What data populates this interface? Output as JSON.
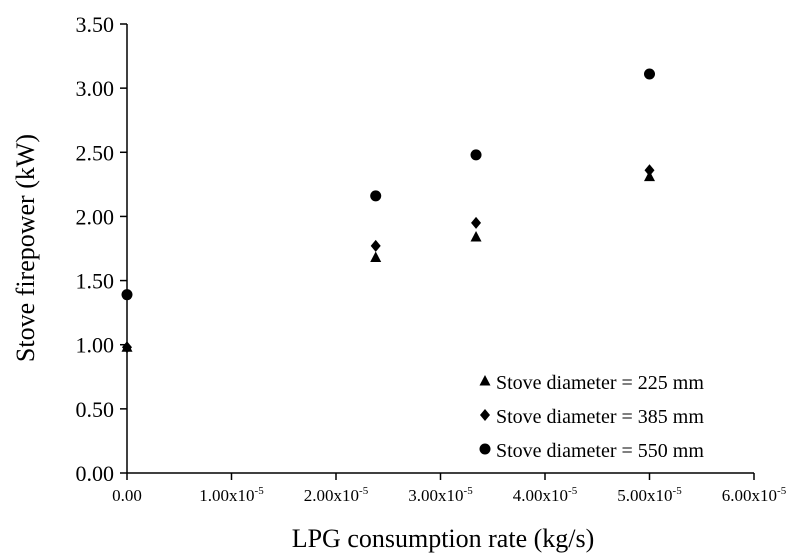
{
  "chart_data": {
    "type": "scatter",
    "title": "",
    "xlabel": "LPG consumption rate (kg/s)",
    "ylabel": "Stove firepower (kW)",
    "xlim": [
      0,
      6e-05
    ],
    "ylim": [
      0,
      3.5
    ],
    "x_ticks": [
      {
        "value": 0,
        "mantissa": "0.00",
        "exp": ""
      },
      {
        "value": 1e-05,
        "mantissa": "1.00x10",
        "exp": "-5"
      },
      {
        "value": 2e-05,
        "mantissa": "2.00x10",
        "exp": "-5"
      },
      {
        "value": 3e-05,
        "mantissa": "3.00x10",
        "exp": "-5"
      },
      {
        "value": 4e-05,
        "mantissa": "4.00x10",
        "exp": "-5"
      },
      {
        "value": 5e-05,
        "mantissa": "5.00x10",
        "exp": "-5"
      },
      {
        "value": 6e-05,
        "mantissa": "6.00x10",
        "exp": "-5"
      }
    ],
    "y_ticks": [
      {
        "value": 0,
        "label": "0.00"
      },
      {
        "value": 0.5,
        "label": "0.50"
      },
      {
        "value": 1.0,
        "label": "1.00"
      },
      {
        "value": 1.5,
        "label": "1.50"
      },
      {
        "value": 2.0,
        "label": "2.00"
      },
      {
        "value": 2.5,
        "label": "2.50"
      },
      {
        "value": 3.0,
        "label": "3.00"
      },
      {
        "value": 3.5,
        "label": "3.50"
      }
    ],
    "grid": false,
    "legend_position": "bottom-right",
    "series": [
      {
        "name": "Stove diameter = 225 mm",
        "marker": "triangle",
        "color": "#000000",
        "points": [
          [
            0,
            0.98
          ],
          [
            2.38e-05,
            1.68
          ],
          [
            3.34e-05,
            1.84
          ],
          [
            5e-05,
            2.31
          ]
        ]
      },
      {
        "name": "Stove diameter = 385 mm",
        "marker": "diamond",
        "color": "#000000",
        "points": [
          [
            0,
            0.98
          ],
          [
            2.38e-05,
            1.77
          ],
          [
            3.34e-05,
            1.95
          ],
          [
            5e-05,
            2.36
          ]
        ]
      },
      {
        "name": "Stove diameter = 550 mm",
        "marker": "circle",
        "color": "#000000",
        "points": [
          [
            0,
            1.39
          ],
          [
            2.38e-05,
            2.16
          ],
          [
            3.34e-05,
            2.48
          ],
          [
            5e-05,
            3.11
          ]
        ]
      }
    ]
  }
}
